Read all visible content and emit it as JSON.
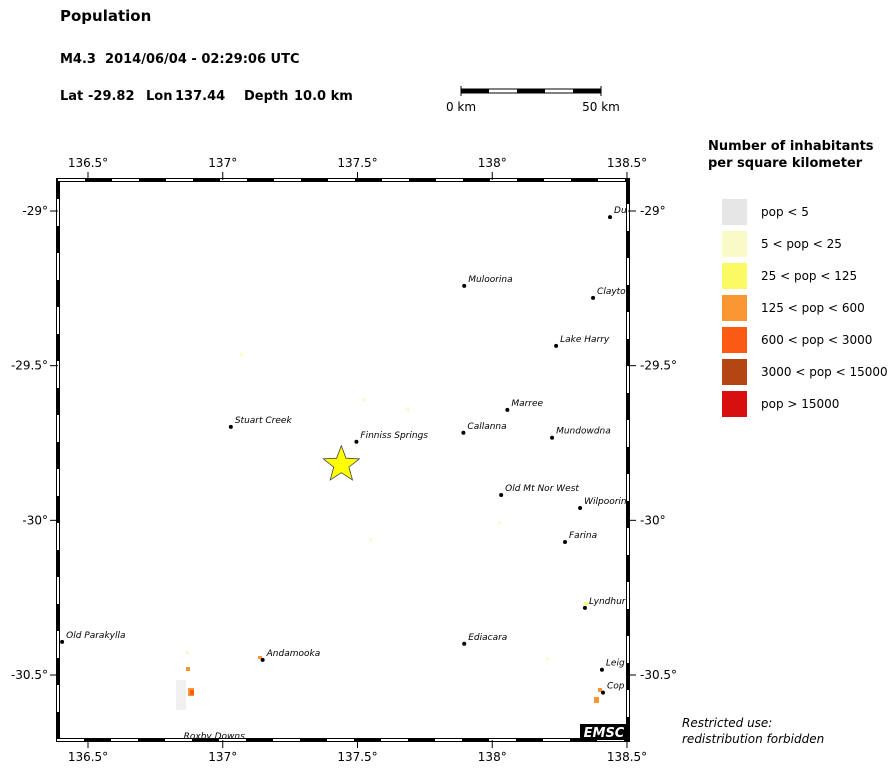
{
  "header": {
    "title": "Population",
    "event": {
      "magnitude_time": "M4.3  2014/06/04 - 02:29:06 UTC",
      "lat_label": "Lat",
      "lat": -29.82,
      "lon_label": "Lon",
      "lon": 137.44,
      "depth_label": "Depth",
      "depth": "10.0 km"
    }
  },
  "scale_bar": {
    "start": "0 km",
    "end": "50 km"
  },
  "map": {
    "xticks": [
      {
        "value": 136.5,
        "label": "136.5°"
      },
      {
        "value": 137,
        "label": "137°"
      },
      {
        "value": 137.5,
        "label": "137.5°"
      },
      {
        "value": 138,
        "label": "138°"
      },
      {
        "value": 138.5,
        "label": "138.5°"
      }
    ],
    "yticks": [
      {
        "value": -29,
        "label": "-29°"
      },
      {
        "value": -29.5,
        "label": "-29.5°"
      },
      {
        "value": -30,
        "label": "-30°"
      },
      {
        "value": -30.5,
        "label": "-30.5°"
      }
    ],
    "places": [
      {
        "name": "Du",
        "lon": 138.437,
        "lat": -29.02
      },
      {
        "name": "Muloorina",
        "lon": 137.896,
        "lat": -29.242
      },
      {
        "name": "Clayto",
        "lon": 138.374,
        "lat": -29.281
      },
      {
        "name": "Lake Harry",
        "lon": 138.237,
        "lat": -29.436
      },
      {
        "name": "Marree",
        "lon": 138.056,
        "lat": -29.643
      },
      {
        "name": "Stuart Creek",
        "lon": 137.03,
        "lat": -29.698
      },
      {
        "name": "Finniss Springs",
        "lon": 137.496,
        "lat": -29.746
      },
      {
        "name": "Callanna",
        "lon": 137.893,
        "lat": -29.717
      },
      {
        "name": "Mundowdna",
        "lon": 138.222,
        "lat": -29.733
      },
      {
        "name": "Old Mt Nor West",
        "lon": 138.033,
        "lat": -29.918
      },
      {
        "name": "Wilpoorin",
        "lon": 138.326,
        "lat": -29.96
      },
      {
        "name": "Farina",
        "lon": 138.27,
        "lat": -30.07
      },
      {
        "name": "Lyndhur",
        "lon": 138.344,
        "lat": -30.283
      },
      {
        "name": "Old Parakylla",
        "lon": 136.404,
        "lat": -30.393
      },
      {
        "name": "Ediacara",
        "lon": 137.896,
        "lat": -30.399
      },
      {
        "name": "Andamooka",
        "lon": 137.148,
        "lat": -30.451
      },
      {
        "name": "Leig",
        "lon": 138.407,
        "lat": -30.483
      },
      {
        "name": "Cop",
        "lon": 138.411,
        "lat": -30.557
      },
      {
        "name": "Roxby Downs",
        "lon": 136.84,
        "lat": -30.72
      }
    ],
    "watermark": "EMSC"
  },
  "legend": {
    "title": [
      "Number of inhabitants",
      "per square kilometer"
    ],
    "items": [
      {
        "label": "pop < 5",
        "color": "#e6e6e6"
      },
      {
        "label": "5 < pop < 25",
        "color": "#fafac8"
      },
      {
        "label": "25 < pop < 125",
        "color": "#fafa64"
      },
      {
        "label": "125 < pop < 600",
        "color": "#fa9632"
      },
      {
        "label": "600 < pop < 3000",
        "color": "#fa5a14"
      },
      {
        "label": "3000 < pop < 15000",
        "color": "#b44614"
      },
      {
        "label": "pop > 15000",
        "color": "#d70f0f"
      }
    ]
  },
  "footer": [
    "Restricted use:",
    "redistribution forbidden"
  ]
}
